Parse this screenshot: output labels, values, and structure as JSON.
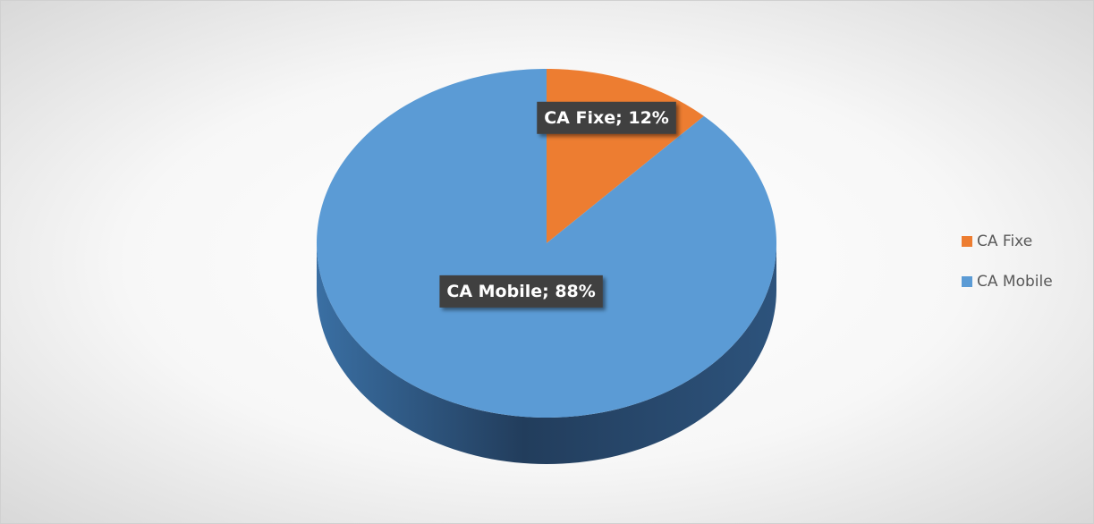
{
  "chart_data": {
    "type": "pie",
    "categories": [
      "CA Fixe",
      "CA Mobile"
    ],
    "values": [
      12,
      88
    ],
    "value_labels": [
      "CA Fixe; 12%",
      "CA Mobile; 88%"
    ],
    "colors": [
      "#ED7D31",
      "#5B9BD5"
    ],
    "legend": "right"
  }
}
